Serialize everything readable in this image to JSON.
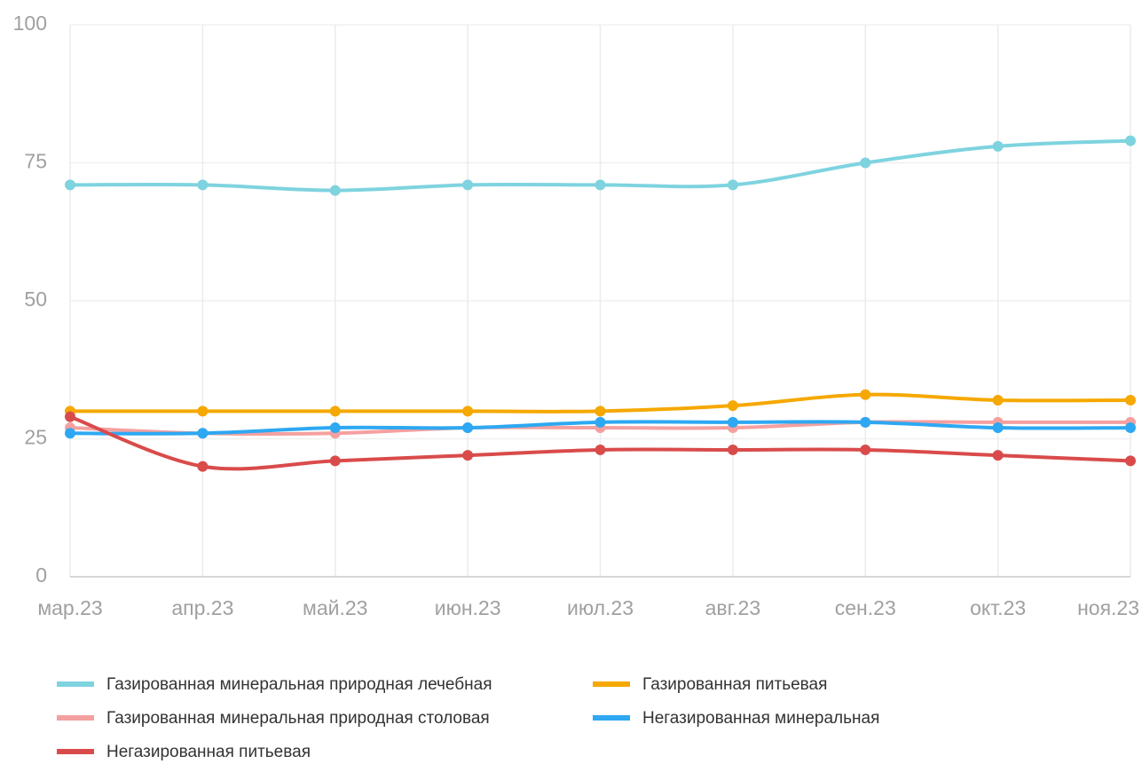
{
  "chart_data": {
    "type": "line",
    "categories": [
      "мар.23",
      "апр.23",
      "май.23",
      "июн.23",
      "июл.23",
      "авг.23",
      "сен.23",
      "окт.23",
      "ноя.23"
    ],
    "series": [
      {
        "name": "Газированная минеральная природная лечебная",
        "color": "#7ed3df",
        "values": [
          71,
          71,
          70,
          71,
          71,
          71,
          75,
          78,
          79
        ]
      },
      {
        "name": "Газированная питьевая",
        "color": "#f5a800",
        "values": [
          30,
          30,
          30,
          30,
          30,
          31,
          33,
          32,
          32
        ]
      },
      {
        "name": "Газированная минеральная природная столовая",
        "color": "#f5a0a0",
        "values": [
          27,
          26,
          26,
          27,
          27,
          27,
          28,
          28,
          28
        ]
      },
      {
        "name": "Негазированная минеральная",
        "color": "#2ea8f2",
        "values": [
          26,
          26,
          27,
          27,
          28,
          28,
          28,
          27,
          27
        ]
      },
      {
        "name": "Негазированная питьевая",
        "color": "#d94b4b",
        "values": [
          29,
          20,
          21,
          22,
          23,
          23,
          23,
          22,
          21
        ]
      }
    ],
    "ylim": [
      0,
      100
    ],
    "yticks": [
      0,
      25,
      50,
      75,
      100
    ],
    "grid": true,
    "legend": "bottom"
  }
}
